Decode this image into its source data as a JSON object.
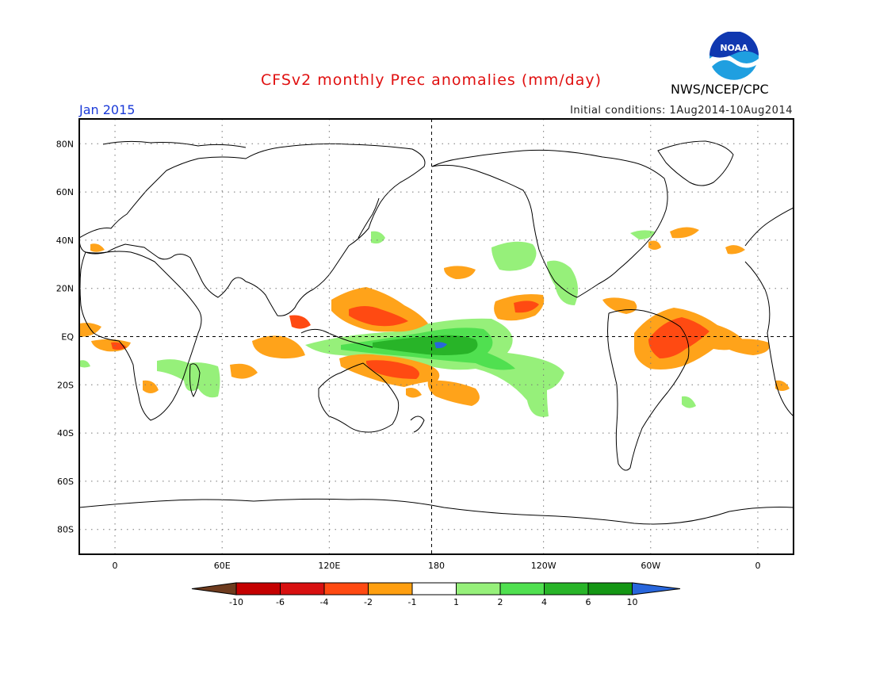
{
  "title": "CFSv2 monthly Prec anomalies (mm/day)",
  "agency": "NWS/NCEP/CPC",
  "logo_text": "NOAA",
  "valid_month": "Jan 2015",
  "initial_conditions": "Initial conditions: 1Aug2014-10Aug2014",
  "map": {
    "projection": "equirectangular",
    "longitude_range": [
      -20,
      380
    ],
    "latitude_range": [
      -90,
      90
    ],
    "reference_lines": [
      "Equator",
      "180 meridian"
    ],
    "grid": "dotted",
    "lat_ticks": [
      "80N",
      "60N",
      "40N",
      "20N",
      "EQ",
      "20S",
      "40S",
      "60S",
      "80S"
    ],
    "lat_values": [
      80,
      60,
      40,
      20,
      0,
      -20,
      -40,
      -60,
      -80
    ],
    "lon_ticks": [
      "0",
      "60E",
      "120E",
      "180",
      "120W",
      "60W",
      "0"
    ],
    "lon_values": [
      0,
      60,
      120,
      180,
      240,
      300,
      360
    ]
  },
  "colorbar": {
    "labels": [
      "-10",
      "-6",
      "-4",
      "-2",
      "-1",
      "1",
      "2",
      "4",
      "6",
      "10"
    ],
    "colors": [
      "#6e3b1e",
      "#c40000",
      "#d81010",
      "#ff4a12",
      "#ff9f10",
      "#ffffff",
      "#96f07a",
      "#50e050",
      "#28b428",
      "#149614",
      "#2866dc"
    ]
  },
  "anomaly_colors": {
    "dry_moderate": "#ffa31a",
    "dry_strong": "#ff4a12",
    "wet_light": "#96f07a",
    "wet_moderate": "#50e050",
    "wet_strong": "#28b428",
    "wet_extreme": "#2866dc"
  }
}
